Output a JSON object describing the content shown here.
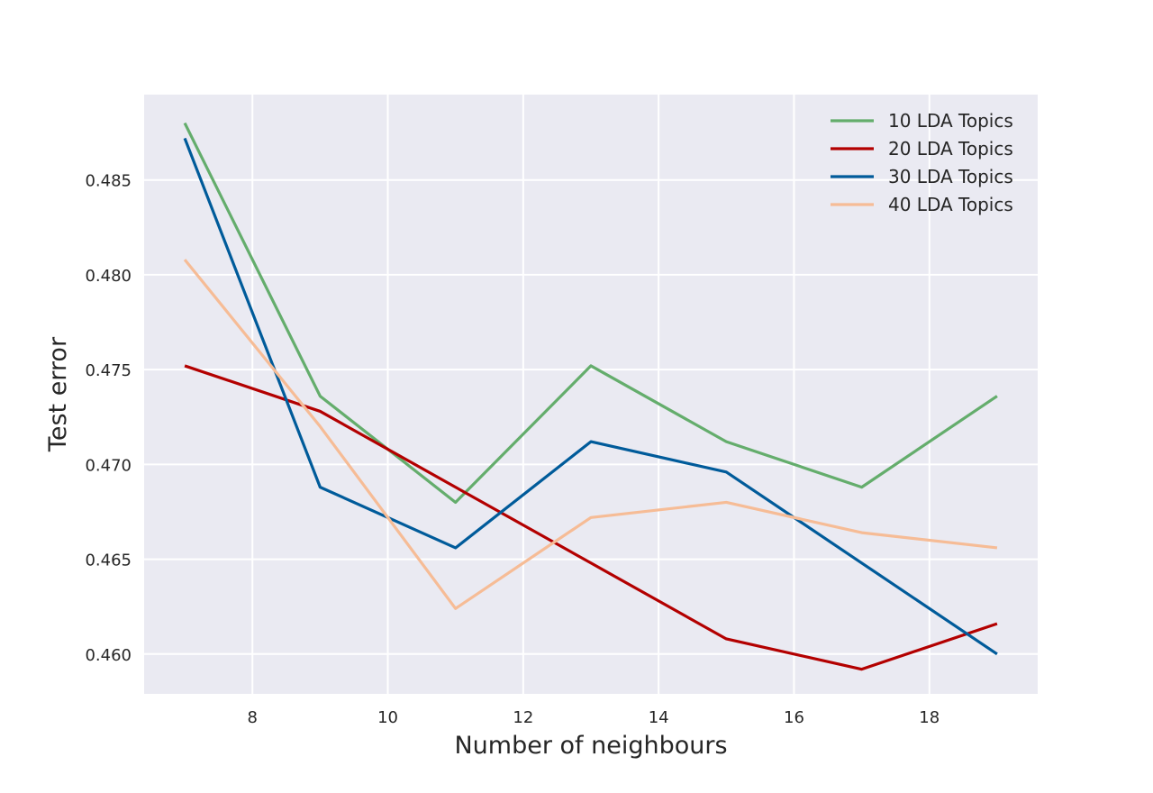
{
  "chart_data": {
    "type": "line",
    "title": "",
    "xlabel": "Number of neighbours",
    "ylabel": "Test error",
    "xlim": [
      6.4,
      19.6
    ],
    "ylim": [
      0.4579,
      0.4895
    ],
    "xticks": [
      8,
      10,
      12,
      14,
      16,
      18
    ],
    "xtick_labels": [
      "8",
      "10",
      "12",
      "14",
      "16",
      "18"
    ],
    "yticks": [
      0.46,
      0.465,
      0.47,
      0.475,
      0.48,
      0.485
    ],
    "ytick_labels": [
      "0.460",
      "0.465",
      "0.470",
      "0.475",
      "0.480",
      "0.485"
    ],
    "grid": true,
    "legend_position": "top-right",
    "x": [
      7,
      9,
      11,
      13,
      15,
      17,
      19
    ],
    "series": [
      {
        "name": "10 LDA Topics",
        "color": "#64ad6c",
        "values": [
          0.488,
          0.4736,
          0.468,
          0.4752,
          0.4712,
          0.4688,
          0.4736
        ]
      },
      {
        "name": "20 LDA Topics",
        "color": "#b30000",
        "values": [
          0.4752,
          0.4728,
          0.4688,
          0.4648,
          0.4608,
          0.4592,
          0.4616
        ]
      },
      {
        "name": "30 LDA Topics",
        "color": "#005b9a",
        "values": [
          0.4872,
          0.4688,
          0.4656,
          0.4712,
          0.4696,
          0.4648,
          0.46
        ]
      },
      {
        "name": "40 LDA Topics",
        "color": "#f6bc96",
        "values": [
          0.4808,
          0.472,
          0.4624,
          0.4672,
          0.468,
          0.4664,
          0.4656
        ]
      }
    ]
  }
}
